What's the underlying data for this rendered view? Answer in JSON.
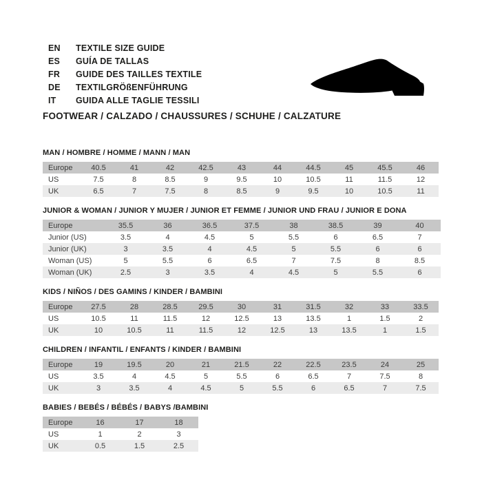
{
  "header": {
    "languages": [
      {
        "code": "EN",
        "label": "TEXTILE SIZE GUIDE"
      },
      {
        "code": "ES",
        "label": "GUÍA DE TALLAS"
      },
      {
        "code": "FR",
        "label": "GUIDE DES TAILLES TEXTILE"
      },
      {
        "code": "DE",
        "label": "TEXTILGRÖßENFÜHRUNG"
      },
      {
        "code": "IT",
        "label": "GUIDA ALLE TAGLIE TESSILI"
      }
    ],
    "shoe_icon": "dress-shoe-silhouette",
    "category_title": "FOOTWEAR / CALZADO / CHAUSSURES / SCHUHE / CALZATURE"
  },
  "colors": {
    "header_row_bg": "#c7c7c7",
    "alt_row_bg": "#ebebeb",
    "icon_color": "#000000",
    "text_color": "#1d1d1b"
  },
  "tables": [
    {
      "id": "man",
      "title": "MAN / HOMBRE / HOMME / MANN / MAN",
      "rows": [
        {
          "label": "Europe",
          "header": true,
          "values": [
            "40.5",
            "41",
            "42",
            "42.5",
            "43",
            "44",
            "44.5",
            "45",
            "45.5",
            "46"
          ]
        },
        {
          "label": "US",
          "values": [
            "7.5",
            "8",
            "8.5",
            "9",
            "9.5",
            "10",
            "10.5",
            "11",
            "11.5",
            "12"
          ]
        },
        {
          "label": "UK",
          "values": [
            "6.5",
            "7",
            "7.5",
            "8",
            "8.5",
            "9",
            "9.5",
            "10",
            "10.5",
            "11"
          ]
        }
      ]
    },
    {
      "id": "junior-woman",
      "title": "JUNIOR & WOMAN / JUNIOR Y MUJER / JUNIOR ET FEMME / JUNIOR UND FRAU / JUNIOR E DONA",
      "rows": [
        {
          "label": "Europe",
          "header": true,
          "values": [
            "35.5",
            "36",
            "36.5",
            "37.5",
            "38",
            "38.5",
            "39",
            "40"
          ]
        },
        {
          "label": "Junior (US)",
          "values": [
            "3.5",
            "4",
            "4.5",
            "5",
            "5.5",
            "6",
            "6.5",
            "7"
          ]
        },
        {
          "label": "Junior (UK)",
          "values": [
            "3",
            "3.5",
            "4",
            "4.5",
            "5",
            "5.5",
            "6",
            "6"
          ]
        },
        {
          "label": "Woman (US)",
          "values": [
            "5",
            "5.5",
            "6",
            "6.5",
            "7",
            "7.5",
            "8",
            "8.5"
          ]
        },
        {
          "label": "Woman (UK)",
          "values": [
            "2.5",
            "3",
            "3.5",
            "4",
            "4.5",
            "5",
            "5.5",
            "6"
          ]
        }
      ]
    },
    {
      "id": "kids",
      "title": "KIDS / NIÑOS / DES GAMINS / KINDER / BAMBINI",
      "rows": [
        {
          "label": "Europe",
          "header": true,
          "values": [
            "27.5",
            "28",
            "28.5",
            "29.5",
            "30",
            "31",
            "31.5",
            "32",
            "33",
            "33.5"
          ]
        },
        {
          "label": "US",
          "values": [
            "10.5",
            "11",
            "11.5",
            "12",
            "12.5",
            "13",
            "13.5",
            "1",
            "1.5",
            "2"
          ]
        },
        {
          "label": "UK",
          "values": [
            "10",
            "10.5",
            "11",
            "11.5",
            "12",
            "12.5",
            "13",
            "13.5",
            "1",
            "1.5"
          ]
        }
      ]
    },
    {
      "id": "children",
      "title": "CHILDREN / INFANTIL / ENFANTS / KINDER / BAMBINI",
      "rows": [
        {
          "label": "Europe",
          "header": true,
          "values": [
            "19",
            "19.5",
            "20",
            "21",
            "21.5",
            "22",
            "22.5",
            "23.5",
            "24",
            "25"
          ]
        },
        {
          "label": "US",
          "values": [
            "3.5",
            "4",
            "4.5",
            "5",
            "5.5",
            "6",
            "6.5",
            "7",
            "7.5",
            "8"
          ]
        },
        {
          "label": "UK",
          "values": [
            "3",
            "3.5",
            "4",
            "4.5",
            "5",
            "5.5",
            "6",
            "6.5",
            "7",
            "7.5"
          ]
        }
      ]
    },
    {
      "id": "babies",
      "title": "BABIES / BEBÉS / BÉBÉS / BABYS /BAMBINI",
      "rows": [
        {
          "label": "Europe",
          "header": true,
          "values": [
            "16",
            "17",
            "18"
          ]
        },
        {
          "label": "US",
          "values": [
            "1",
            "2",
            "3"
          ]
        },
        {
          "label": "UK",
          "values": [
            "0.5",
            "1.5",
            "2.5"
          ]
        }
      ]
    }
  ]
}
